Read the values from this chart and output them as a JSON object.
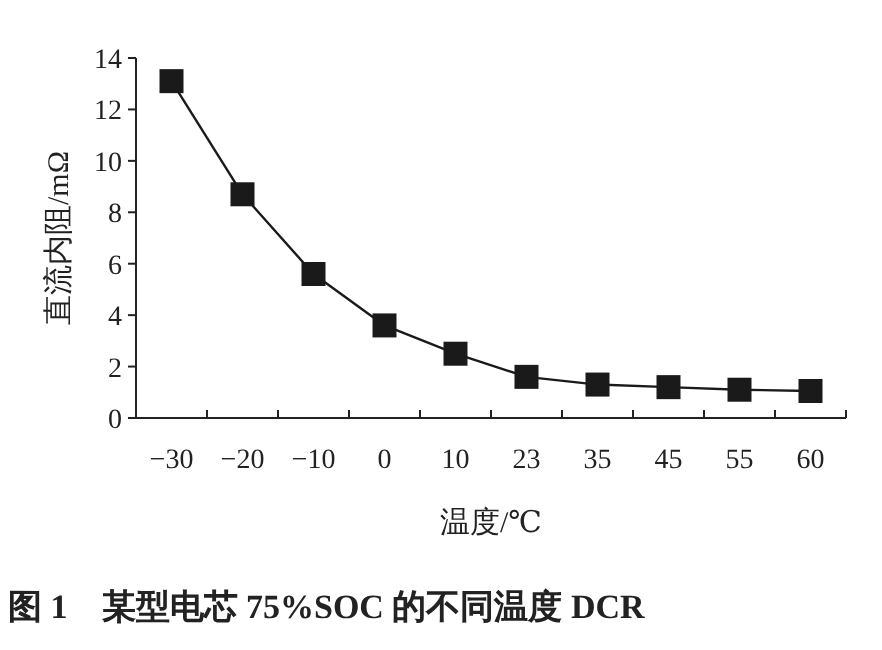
{
  "chart_data": {
    "type": "line",
    "title": "图 1　某型电芯 75%SOC 的不同温度 DCR",
    "xlabel": "温度/℃",
    "ylabel": "直流内阻/mΩ",
    "categories": [
      "−30",
      "−20",
      "−10",
      "0",
      "10",
      "23",
      "35",
      "45",
      "55",
      "60"
    ],
    "series": [
      {
        "color": "#1a1a1a",
        "values": [
          13.1,
          8.7,
          5.6,
          3.6,
          2.5,
          1.6,
          1.3,
          1.2,
          1.1,
          1.05
        ]
      }
    ],
    "ylim": [
      0,
      14
    ],
    "yticks": [
      0,
      2,
      4,
      6,
      8,
      10,
      12,
      14
    ],
    "marker": "square",
    "line_style": "solid"
  }
}
